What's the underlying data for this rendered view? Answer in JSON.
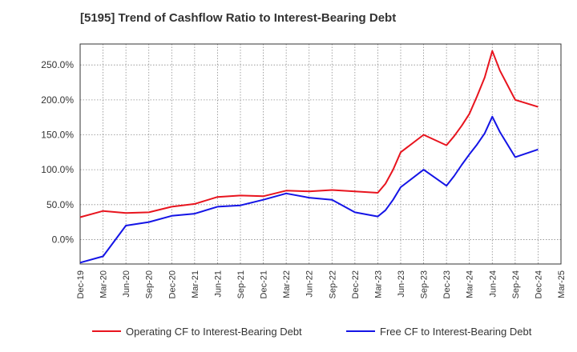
{
  "chart_data": {
    "type": "line",
    "title": "[5195]  Trend of Cashflow Ratio to Interest-Bearing Debt",
    "xlabel": "",
    "ylabel": "",
    "x_ticks": [
      "Dec-19",
      "Mar-20",
      "Jun-20",
      "Sep-20",
      "Dec-20",
      "Mar-21",
      "Jun-21",
      "Sep-21",
      "Dec-21",
      "Mar-22",
      "Jun-22",
      "Sep-22",
      "Dec-22",
      "Mar-23",
      "Jun-23",
      "Sep-23",
      "Dec-23",
      "Mar-24",
      "Jun-24",
      "Sep-24",
      "Dec-24",
      "Mar-25"
    ],
    "y_ticks": [
      0,
      50,
      100,
      150,
      200,
      250
    ],
    "y_tick_suffix": "%",
    "ylim": [
      -35,
      280
    ],
    "grid": true,
    "legend_position": "bottom",
    "series": [
      {
        "name": "Operating CF to Interest-Bearing Debt",
        "color": "#e8141e",
        "points": [
          {
            "x": "Dec-19",
            "y": 32
          },
          {
            "x": "Mar-20",
            "y": 41
          },
          {
            "x": "Jun-20",
            "y": 38
          },
          {
            "x": "Sep-20",
            "y": 39
          },
          {
            "x": "Dec-20",
            "y": 47
          },
          {
            "x": "Mar-21",
            "y": 51
          },
          {
            "x": "Jun-21",
            "y": 61
          },
          {
            "x": "Sep-21",
            "y": 63
          },
          {
            "x": "Dec-21",
            "y": 62
          },
          {
            "x": "Mar-22",
            "y": 70
          },
          {
            "x": "Jun-22",
            "y": 69
          },
          {
            "x": "Sep-22",
            "y": 71
          },
          {
            "x": "Dec-22",
            "y": 69
          },
          {
            "x": "Mar-23",
            "y": 67
          },
          {
            "x": "Apr-23",
            "y": 80
          },
          {
            "x": "May-23",
            "y": 100
          },
          {
            "x": "Jun-23",
            "y": 125
          },
          {
            "x": "Sep-23",
            "y": 150
          },
          {
            "x": "Dec-23",
            "y": 135
          },
          {
            "x": "Jan-24",
            "y": 148
          },
          {
            "x": "Feb-24",
            "y": 163
          },
          {
            "x": "Mar-24",
            "y": 180
          },
          {
            "x": "Apr-24",
            "y": 205
          },
          {
            "x": "May-24",
            "y": 232
          },
          {
            "x": "Jun-24",
            "y": 270
          },
          {
            "x": "Jul-24",
            "y": 242
          },
          {
            "x": "Sep-24",
            "y": 200
          },
          {
            "x": "Dec-24",
            "y": 190
          }
        ]
      },
      {
        "name": "Free CF to Interest-Bearing Debt",
        "color": "#1414e6",
        "points": [
          {
            "x": "Dec-19",
            "y": -33
          },
          {
            "x": "Mar-20",
            "y": -24
          },
          {
            "x": "Jun-20",
            "y": 20
          },
          {
            "x": "Sep-20",
            "y": 25
          },
          {
            "x": "Dec-20",
            "y": 34
          },
          {
            "x": "Mar-21",
            "y": 37
          },
          {
            "x": "Jun-21",
            "y": 47
          },
          {
            "x": "Sep-21",
            "y": 49
          },
          {
            "x": "Dec-21",
            "y": 57
          },
          {
            "x": "Mar-22",
            "y": 66
          },
          {
            "x": "Jun-22",
            "y": 60
          },
          {
            "x": "Sep-22",
            "y": 57
          },
          {
            "x": "Dec-22",
            "y": 39
          },
          {
            "x": "Mar-23",
            "y": 33
          },
          {
            "x": "Apr-23",
            "y": 42
          },
          {
            "x": "May-23",
            "y": 57
          },
          {
            "x": "Jun-23",
            "y": 75
          },
          {
            "x": "Sep-23",
            "y": 100
          },
          {
            "x": "Dec-23",
            "y": 77
          },
          {
            "x": "Jan-24",
            "y": 91
          },
          {
            "x": "Feb-24",
            "y": 107
          },
          {
            "x": "Mar-24",
            "y": 122
          },
          {
            "x": "Apr-24",
            "y": 136
          },
          {
            "x": "May-24",
            "y": 152
          },
          {
            "x": "Jun-24",
            "y": 176
          },
          {
            "x": "Jul-24",
            "y": 154
          },
          {
            "x": "Sep-24",
            "y": 118
          },
          {
            "x": "Dec-24",
            "y": 129
          }
        ]
      }
    ]
  }
}
